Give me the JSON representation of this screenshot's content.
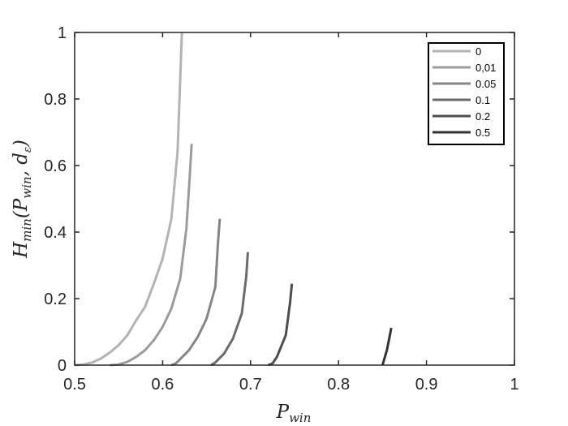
{
  "chart_data": {
    "type": "line",
    "title": "",
    "xlabel": {
      "main": "P",
      "sub": "win"
    },
    "ylabel": {
      "main": "H",
      "sub": "min",
      "args": "(P",
      "args_sub": "win",
      "args_rest": ", d",
      "args_rest_sub": "ε",
      "close": ")"
    },
    "xlim": [
      0.5,
      1
    ],
    "ylim": [
      0,
      1
    ],
    "xticks": [
      "0.5",
      "0.6",
      "0.7",
      "0.8",
      "0.9",
      "1"
    ],
    "yticks": [
      "0",
      "0.2",
      "0.4",
      "0.6",
      "0.8",
      "1"
    ],
    "grid": false,
    "legend_position": "top-right",
    "series": [
      {
        "name": "0",
        "color": "#b3b3b3",
        "x": [
          0.5,
          0.51,
          0.52,
          0.53,
          0.54,
          0.55,
          0.56,
          0.57,
          0.58,
          0.59,
          0.6,
          0.61,
          0.617,
          0.622
        ],
        "y": [
          0,
          0.002,
          0.008,
          0.02,
          0.038,
          0.06,
          0.09,
          0.135,
          0.175,
          0.245,
          0.32,
          0.44,
          0.64,
          1.0
        ]
      },
      {
        "name": "0,01",
        "color": "#9b9b9b",
        "x": [
          0.54,
          0.55,
          0.56,
          0.57,
          0.58,
          0.59,
          0.6,
          0.61,
          0.62,
          0.627,
          0.631,
          0.633
        ],
        "y": [
          0,
          0.002,
          0.01,
          0.025,
          0.045,
          0.075,
          0.115,
          0.17,
          0.26,
          0.41,
          0.575,
          0.665
        ]
      },
      {
        "name": "0.05",
        "color": "#858585",
        "x": [
          0.61,
          0.615,
          0.62,
          0.63,
          0.64,
          0.65,
          0.66,
          0.663,
          0.665
        ],
        "y": [
          0,
          0.005,
          0.018,
          0.045,
          0.085,
          0.14,
          0.235,
          0.37,
          0.44
        ]
      },
      {
        "name": "0.1",
        "color": "#6b6b6b",
        "x": [
          0.655,
          0.66,
          0.67,
          0.68,
          0.69,
          0.695,
          0.697
        ],
        "y": [
          0,
          0.008,
          0.035,
          0.08,
          0.155,
          0.265,
          0.34
        ]
      },
      {
        "name": "0.2",
        "color": "#4d4d4d",
        "x": [
          0.72,
          0.725,
          0.73,
          0.74,
          0.745,
          0.747
        ],
        "y": [
          0,
          0.005,
          0.025,
          0.09,
          0.19,
          0.245
        ]
      },
      {
        "name": "0.5",
        "color": "#333333",
        "x": [
          0.85,
          0.855,
          0.858,
          0.86
        ],
        "y": [
          0,
          0.045,
          0.085,
          0.112
        ]
      }
    ]
  }
}
